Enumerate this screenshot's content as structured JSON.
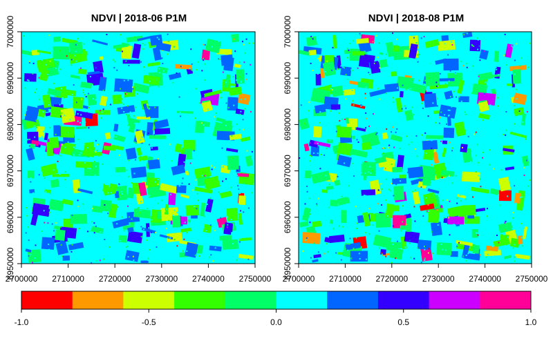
{
  "chart_data": [
    {
      "type": "heatmap",
      "title": "NDVI | 2018-06 P1M",
      "xlim": [
        2700000,
        2750000
      ],
      "ylim": [
        6950000,
        7000000
      ],
      "x_ticks": [
        "2700000",
        "2710000",
        "2720000",
        "2730000",
        "2740000",
        "2750000"
      ],
      "y_ticks": [
        "6950000",
        "6960000",
        "6970000",
        "6980000",
        "6990000",
        "7000000"
      ],
      "dominant_class": "0.0 to 0.2",
      "grid": false
    },
    {
      "type": "heatmap",
      "title": "NDVI | 2018-08 P1M",
      "xlim": [
        2700000,
        2750000
      ],
      "ylim": [
        6950000,
        7000000
      ],
      "x_ticks": [
        "2700000",
        "2710000",
        "2720000",
        "2730000",
        "2740000",
        "2750000"
      ],
      "y_ticks": [
        "6950000",
        "6960000",
        "6970000",
        "6980000",
        "6990000",
        "7000000"
      ],
      "dominant_class": "0.0 to 0.2",
      "grid": false
    }
  ],
  "legend": {
    "range": [
      -1.0,
      1.0
    ],
    "tick_labels": [
      "-1.0",
      "-0.5",
      "0.0",
      "0.5",
      "1.0"
    ],
    "tick_values": [
      -1.0,
      -0.5,
      0.0,
      0.5,
      1.0
    ],
    "colors": [
      "#ff0000",
      "#ff9900",
      "#ccff00",
      "#33ff00",
      "#00ff66",
      "#00ffff",
      "#0066ff",
      "#3300ff",
      "#cc00ff",
      "#ff0099"
    ]
  }
}
